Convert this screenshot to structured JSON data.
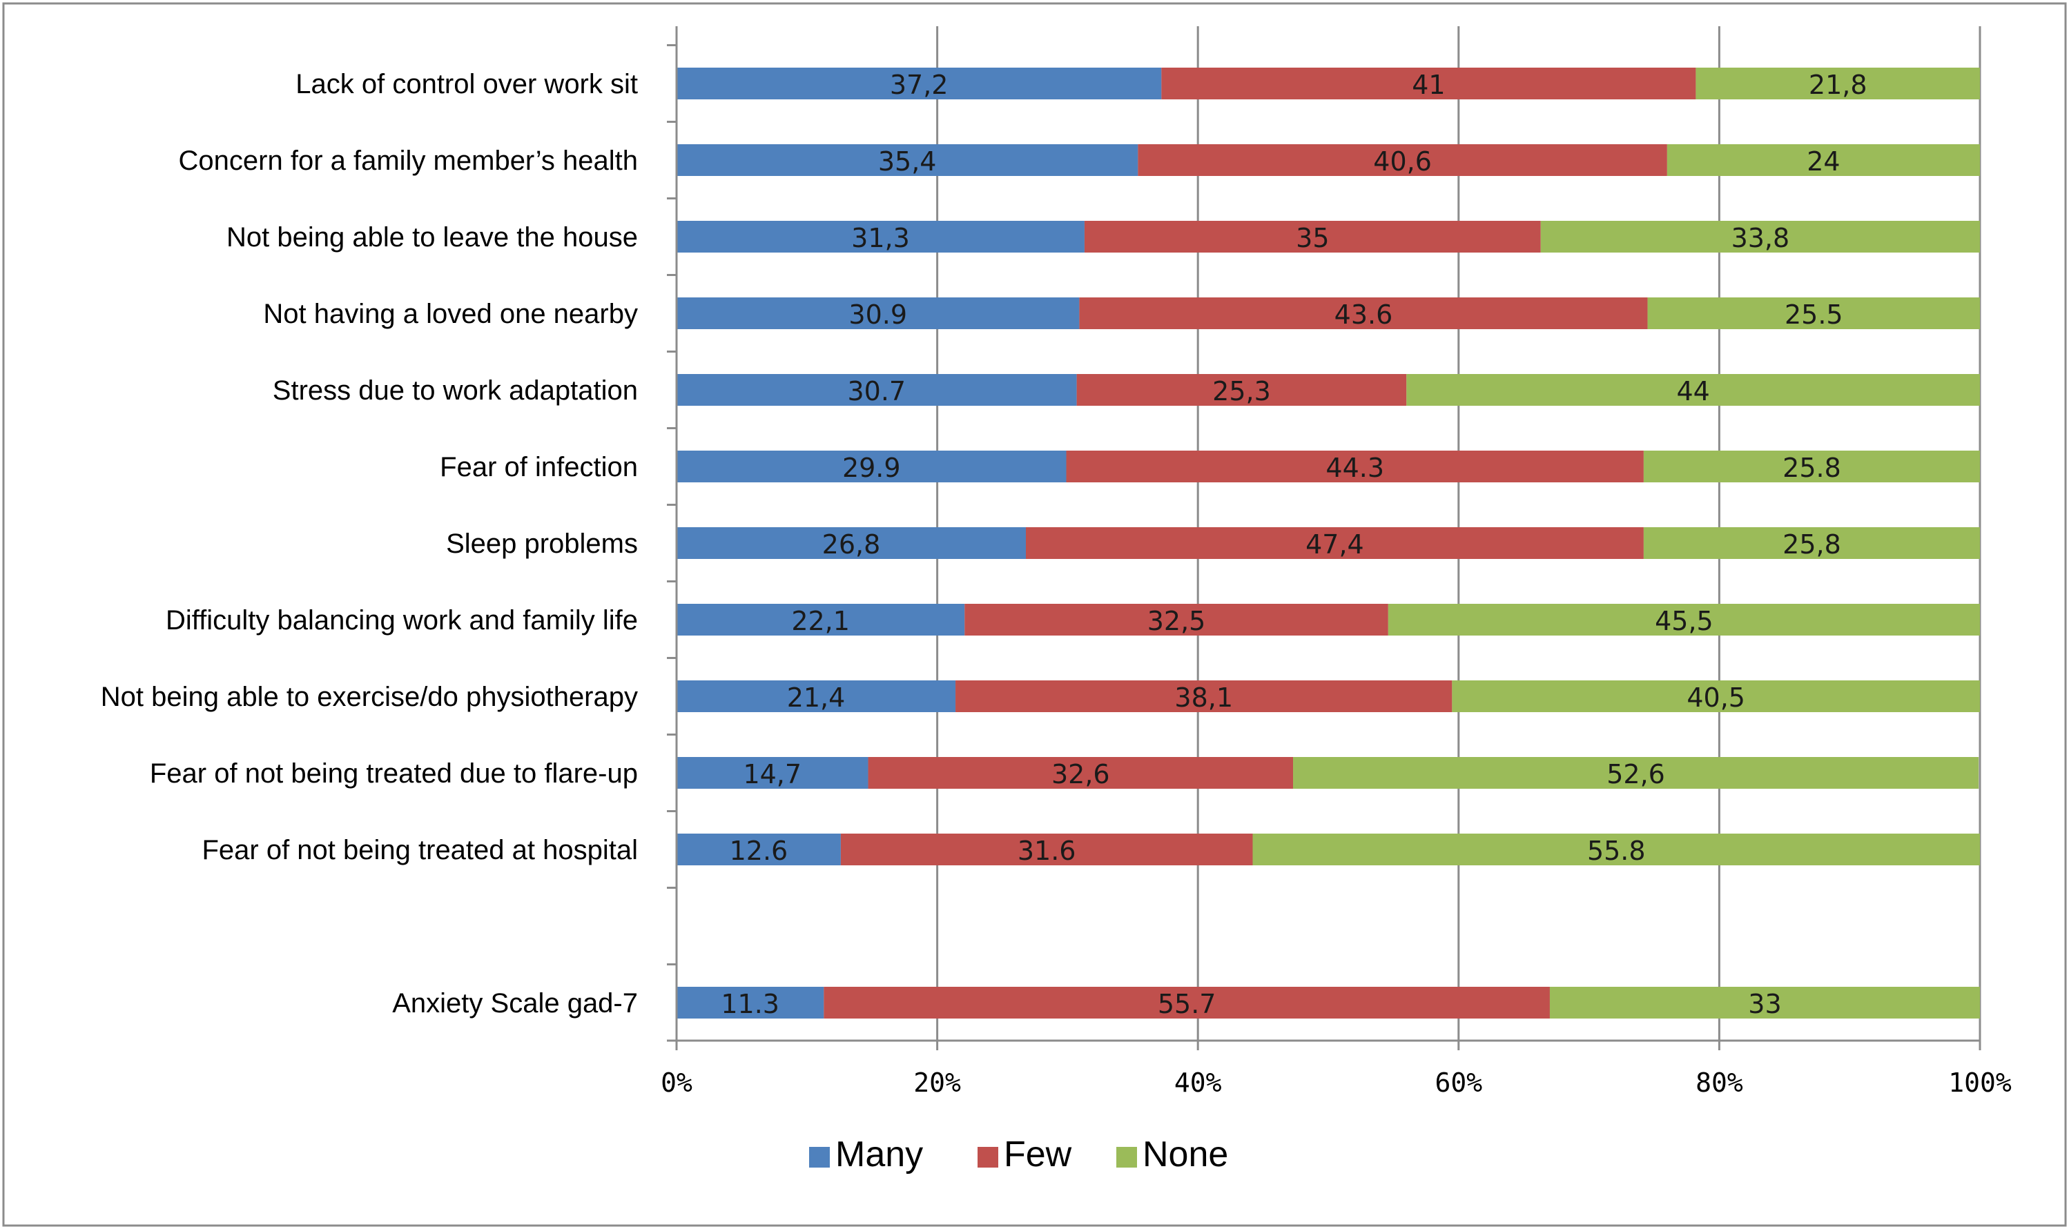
{
  "chart_data": {
    "type": "bar",
    "orientation": "horizontal",
    "stacked": "percent",
    "categories": [
      "Lack of control over work sit",
      "Concern for a family member’s health",
      "Not being able to leave the house",
      "Not having a loved one nearby",
      "Stress due to work adaptation",
      "Fear of infection",
      "Sleep problems",
      "Difficulty balancing work and family life",
      "Not being able to exercise/do physiotherapy",
      "Fear of not being treated due to flare-up",
      "Fear of not being treated at hospital",
      "",
      "Anxiety Scale  gad-7"
    ],
    "series": [
      {
        "name": "Many",
        "color": "#4F81BD",
        "values": [
          37.2,
          35.4,
          31.3,
          30.9,
          30.7,
          29.9,
          26.8,
          22.1,
          21.4,
          14.7,
          12.6,
          null,
          11.3
        ],
        "labels": [
          "37,2",
          "35,4",
          "31,3",
          "30.9",
          "30.7",
          "29.9",
          "26,8",
          "22,1",
          "21,4",
          "14,7",
          "12.6",
          "",
          "11.3"
        ]
      },
      {
        "name": "Few",
        "color": "#C0504D",
        "values": [
          41,
          40.6,
          35,
          43.6,
          25.3,
          44.3,
          47.4,
          32.5,
          38.1,
          32.6,
          31.6,
          null,
          55.7
        ],
        "labels": [
          "41",
          "40,6",
          "35",
          "43.6",
          "25,3",
          "44.3",
          "47,4",
          "32,5",
          "38,1",
          "32,6",
          "31.6",
          "",
          "55.7"
        ]
      },
      {
        "name": "None",
        "color": "#9BBB59",
        "values": [
          21.8,
          24,
          33.8,
          25.5,
          44,
          25.8,
          25.8,
          45.5,
          40.5,
          52.6,
          55.8,
          null,
          33
        ],
        "labels": [
          "21,8",
          "24",
          "33,8",
          "25.5",
          "44",
          "25.8",
          "25,8",
          "45,5",
          "40,5",
          "52,6",
          "55.8",
          "",
          "33"
        ]
      }
    ],
    "x_ticks": [
      "0%",
      "20%",
      "40%",
      "60%",
      "80%",
      "100%"
    ],
    "xlim": [
      0,
      100
    ],
    "grid": "vertical",
    "legend": "bottom",
    "title": "",
    "xlabel": "",
    "ylabel": ""
  }
}
